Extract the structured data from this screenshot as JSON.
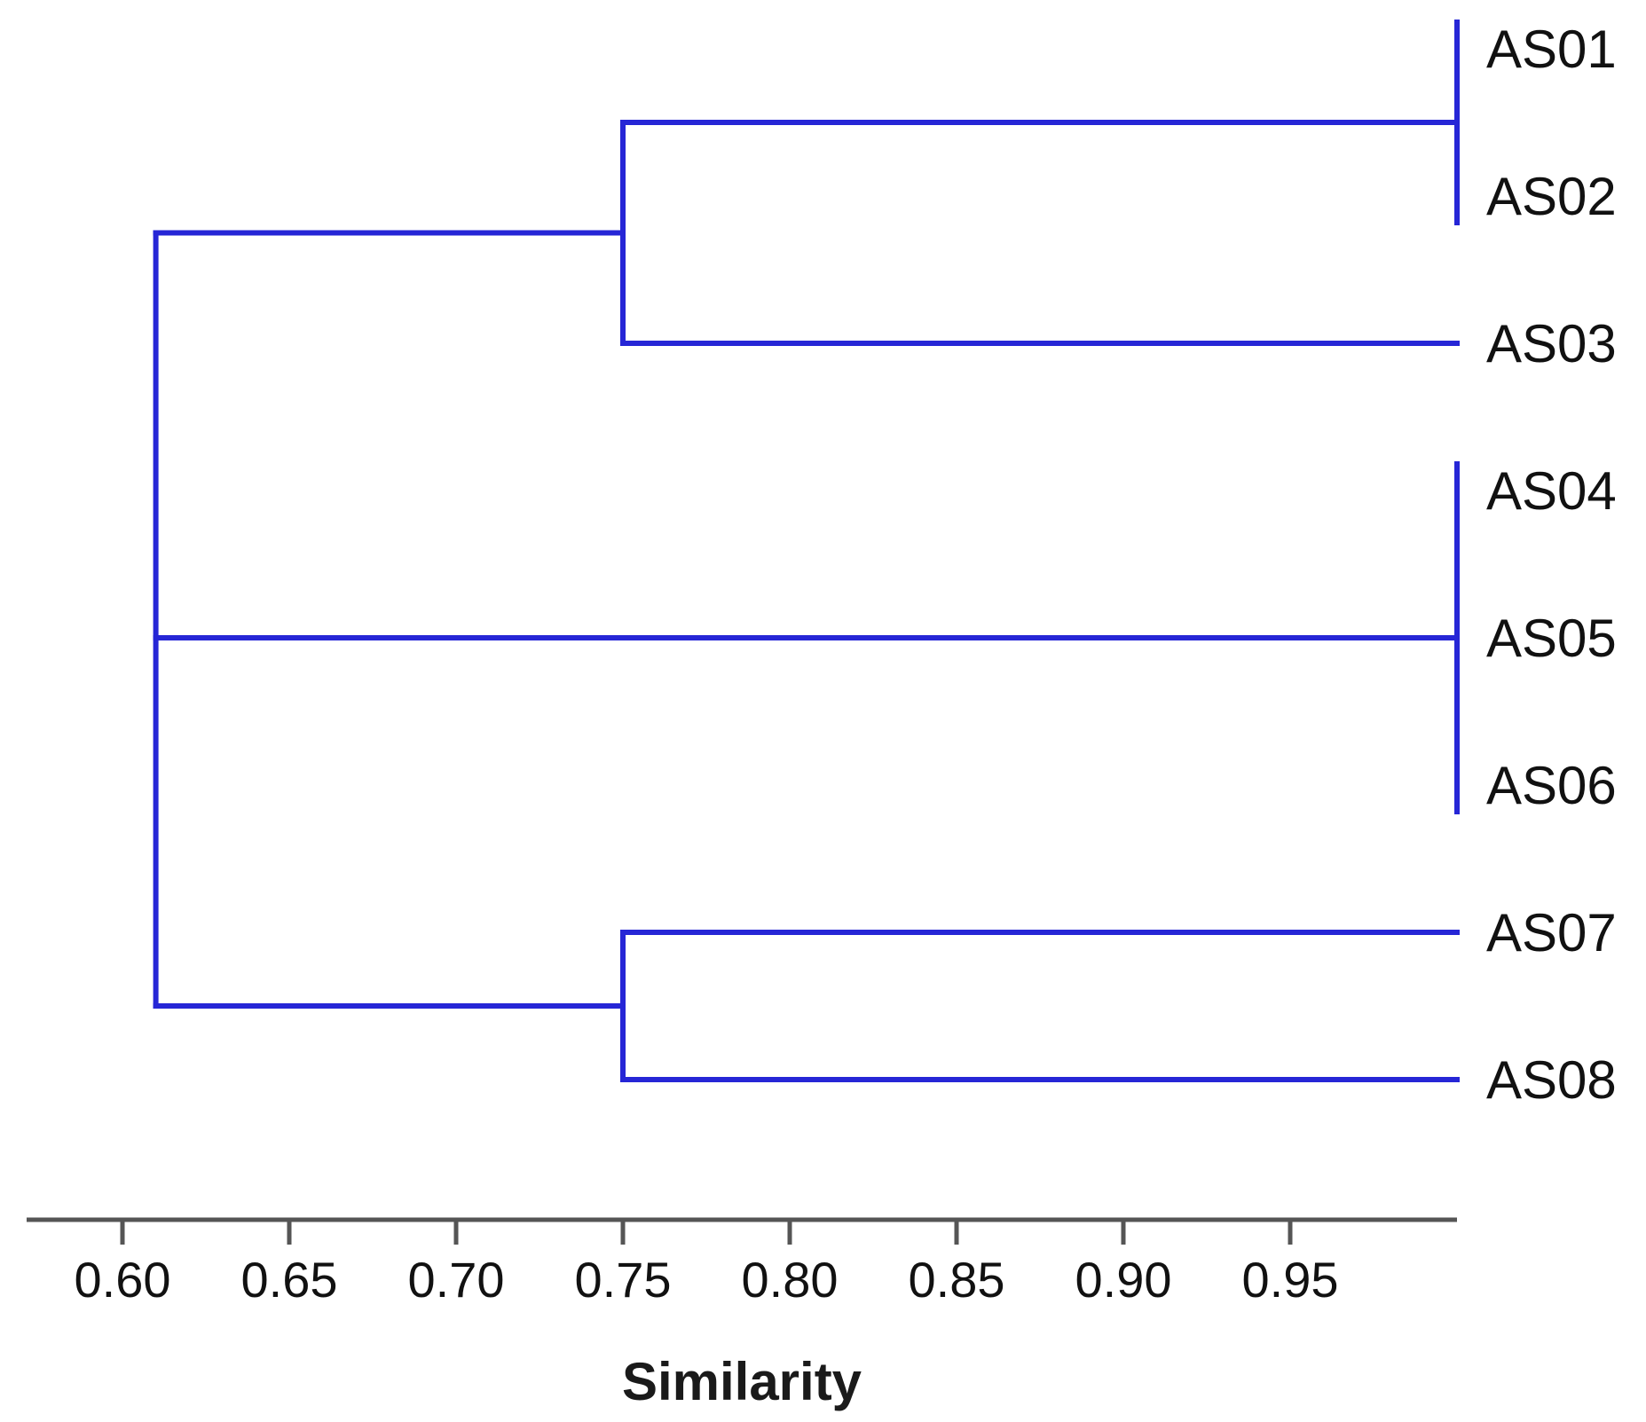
{
  "chart_data": {
    "type": "dendrogram",
    "orientation": "horizontal",
    "xlabel": "Similarity",
    "xlim": [
      0.57,
      1.0
    ],
    "ticks": [
      0.6,
      0.65,
      0.7,
      0.75,
      0.8,
      0.85,
      0.9,
      0.95
    ],
    "tick_labels": [
      "0.60",
      "0.65",
      "0.70",
      "0.75",
      "0.80",
      "0.85",
      "0.90",
      "0.95"
    ],
    "leaves": [
      "AS01",
      "AS02",
      "AS03",
      "AS04",
      "AS05",
      "AS06",
      "AS07",
      "AS08"
    ],
    "merges": [
      {
        "members": [
          "AS01",
          "AS02"
        ],
        "similarity": 1.0
      },
      {
        "members": [
          "AS04",
          "AS05",
          "AS06"
        ],
        "similarity": 1.0
      },
      {
        "members": [
          "AS01",
          "AS02",
          "AS03"
        ],
        "similarity": 0.75
      },
      {
        "members": [
          "AS07",
          "AS08"
        ],
        "similarity": 0.75
      },
      {
        "members": [
          "AS01",
          "AS02",
          "AS03",
          "AS04",
          "AS05",
          "AS06",
          "AS07",
          "AS08"
        ],
        "similarity": 0.61
      }
    ],
    "line_color": "#2626d6",
    "grid": false,
    "legend": "none"
  }
}
